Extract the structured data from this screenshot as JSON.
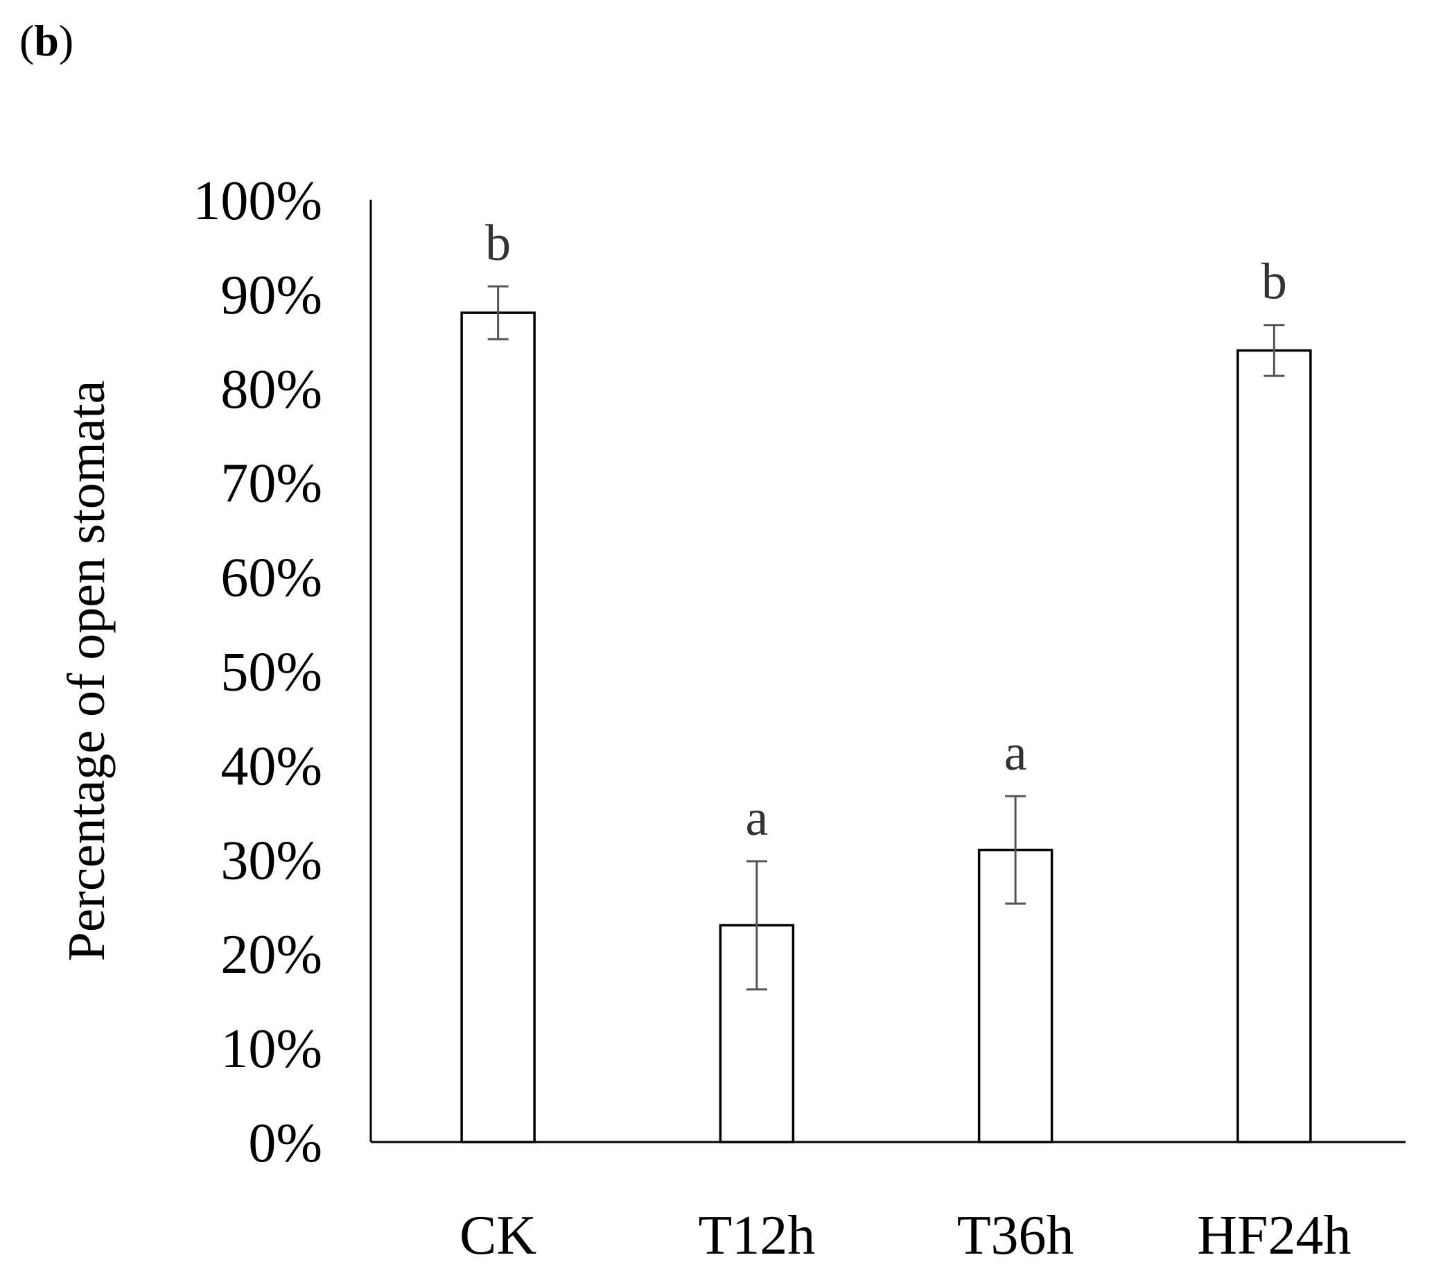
{
  "panel_label": {
    "open": "(",
    "letter": "b",
    "close": ")"
  },
  "chart_data": {
    "type": "bar",
    "title": "",
    "xlabel": "",
    "ylabel": "Percentage of open stomata",
    "categories": [
      "CK",
      "T12h",
      "T36h",
      "HF24h"
    ],
    "values": [
      0.88,
      0.23,
      0.31,
      0.84
    ],
    "errors": [
      0.028,
      0.068,
      0.057,
      0.027
    ],
    "significance": [
      "b",
      "a",
      "a",
      "b"
    ],
    "ylim": [
      0,
      1.0
    ],
    "yticks": [
      "0%",
      "10%",
      "20%",
      "30%",
      "40%",
      "50%",
      "60%",
      "70%",
      "80%",
      "90%",
      "100%"
    ],
    "grid": false,
    "legend": "none",
    "colors": {
      "bar_fill": "#ffffff",
      "bar_stroke": "#000000",
      "error_bar": "#555555",
      "axis": "#000000"
    }
  }
}
